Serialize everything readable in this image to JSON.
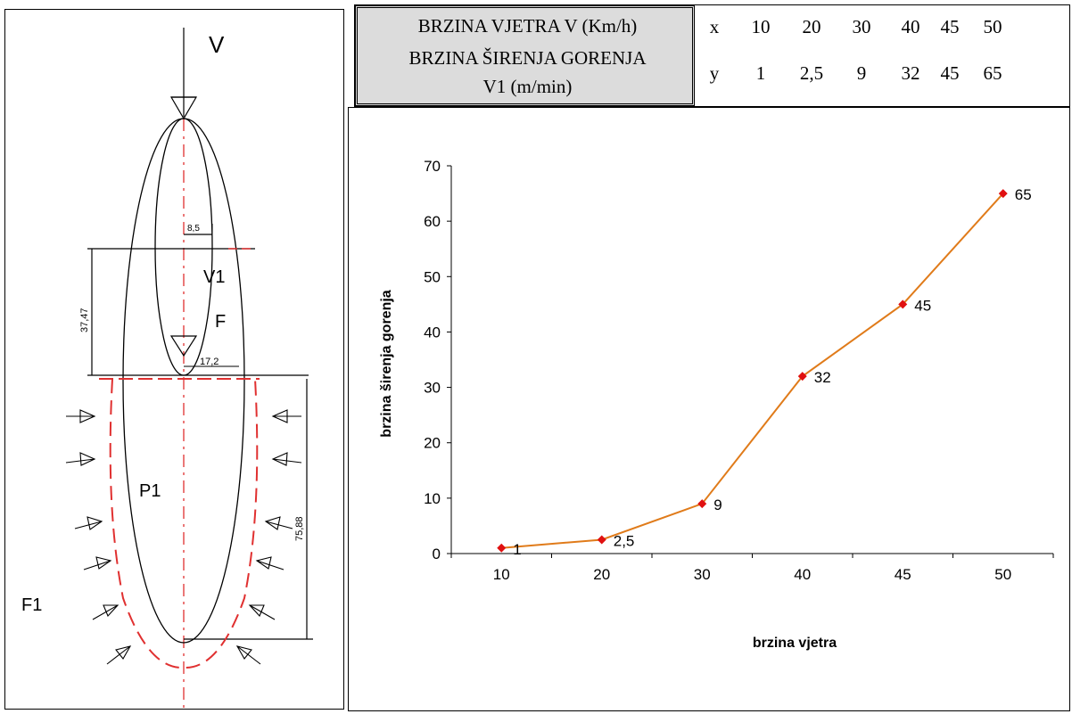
{
  "diagram": {
    "labels": {
      "v": "V",
      "v1": "V1",
      "f": "F",
      "p1": "P1",
      "f1": "F1",
      "dim_small": "8,5",
      "dim_37": "37,47",
      "dim_17": "17,2",
      "dim_75": "75,88"
    },
    "colors": {
      "outline": "#000000",
      "dashed": "#e03030"
    }
  },
  "table": {
    "row1_label": "BRZINA VJETRA V (Km/h)",
    "row2_label_line1": "BRZINA ŠIRENJA GORENJA",
    "row2_label_line2": "V1 (m/min)",
    "x_key": "x",
    "y_key": "y",
    "x_values": [
      "10",
      "20",
      "30",
      "40",
      "45",
      "50"
    ],
    "y_values": [
      "1",
      "2,5",
      "9",
      "32",
      "45",
      "65"
    ]
  },
  "chart_data": {
    "type": "line",
    "categories": [
      "10",
      "20",
      "30",
      "40",
      "45",
      "50"
    ],
    "series": [
      {
        "values": [
          1,
          2.5,
          9,
          32,
          45,
          65
        ],
        "color": "#e07b1a",
        "marker_color": "#e01010"
      }
    ],
    "data_labels": [
      "1",
      "2,5",
      "9",
      "32",
      "45",
      "65"
    ],
    "xlabel": "brzina vjetra",
    "ylabel": "brzina širenja gorenja",
    "ylim": [
      0,
      70
    ],
    "yticks": [
      "0",
      "10",
      "20",
      "30",
      "40",
      "50",
      "60",
      "70"
    ],
    "grid": false,
    "legend": "none"
  }
}
